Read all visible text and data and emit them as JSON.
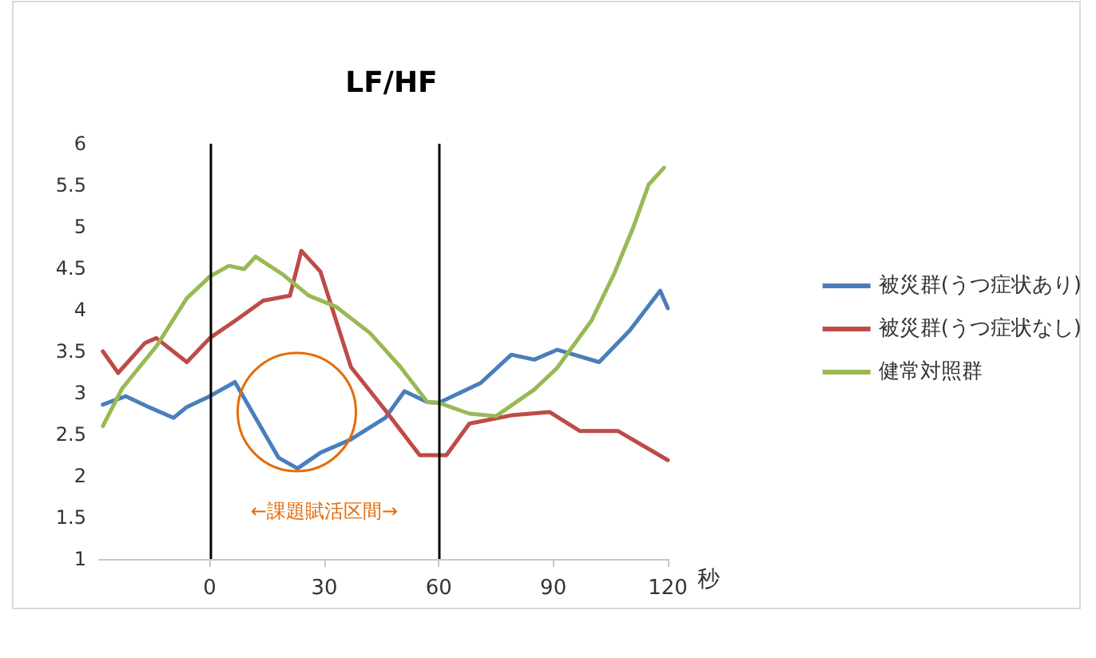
{
  "chart_data": {
    "type": "line",
    "title": "LF/HF",
    "xlabel": "秒",
    "xlim": [
      -29,
      120
    ],
    "xticks": [
      0,
      30,
      60,
      90,
      120
    ],
    "ylim": [
      1,
      6
    ],
    "yticks": [
      1,
      1.5,
      2,
      2.5,
      3,
      3.5,
      4,
      4.5,
      5,
      5.5,
      6
    ],
    "grid": false,
    "legend": "right",
    "marker": "none",
    "line_style": "solid",
    "ref_lines": [
      {
        "axis": "x",
        "value": 0,
        "color": "#000000"
      },
      {
        "axis": "x",
        "value": 60,
        "color": "#000000"
      }
    ],
    "annotations": [
      "←課題賦活区間→"
    ],
    "series": [
      {
        "name": "被災群(うつ症状あり)",
        "color": "#4a7ebb",
        "x": [
          -28,
          -22,
          -16,
          -9.5,
          -6,
          0,
          6.6,
          12,
          18,
          23,
          29,
          37,
          46,
          51,
          57,
          60,
          71,
          79,
          85,
          91,
          102,
          110,
          118,
          120
        ],
        "values": [
          2.86,
          2.96,
          2.83,
          2.7,
          2.83,
          2.96,
          3.13,
          2.7,
          2.22,
          2.09,
          2.28,
          2.44,
          2.7,
          3.02,
          2.89,
          2.88,
          3.12,
          3.46,
          3.4,
          3.52,
          3.37,
          3.75,
          4.23,
          4.02
        ]
      },
      {
        "name": "被災群(うつ症状なし)",
        "color": "#be4b48",
        "x": [
          -28,
          -24,
          -17,
          -14,
          -6,
          0,
          7,
          14,
          21,
          24,
          29,
          37,
          46,
          55,
          60,
          62,
          68,
          79,
          89,
          97,
          107,
          120
        ],
        "values": [
          3.5,
          3.24,
          3.6,
          3.66,
          3.37,
          3.66,
          3.88,
          4.11,
          4.17,
          4.71,
          4.46,
          3.31,
          2.79,
          2.25,
          2.25,
          2.25,
          2.63,
          2.73,
          2.77,
          2.54,
          2.54,
          2.19
        ]
      },
      {
        "name": "健常対照群",
        "color": "#98b954",
        "x": [
          -28,
          -23,
          -14,
          -6,
          0,
          5,
          9,
          12,
          19,
          26,
          33,
          42,
          50,
          57,
          60,
          68,
          75,
          85,
          91,
          100,
          106,
          111,
          115,
          119
        ],
        "values": [
          2.6,
          3.05,
          3.56,
          4.14,
          4.4,
          4.53,
          4.49,
          4.64,
          4.43,
          4.17,
          4.04,
          3.72,
          3.31,
          2.89,
          2.88,
          2.75,
          2.72,
          3.04,
          3.3,
          3.87,
          4.44,
          5.0,
          5.51,
          5.71
        ]
      }
    ]
  }
}
